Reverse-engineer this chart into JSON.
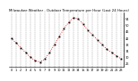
{
  "title": "Milwaukee Weather - Outdoor Temperature per Hour (Last 24 Hours)",
  "hours": [
    0,
    1,
    2,
    3,
    4,
    5,
    6,
    7,
    8,
    9,
    10,
    11,
    12,
    13,
    14,
    15,
    16,
    17,
    18,
    19,
    20,
    21,
    22,
    23
  ],
  "temps": [
    42,
    39,
    36,
    33,
    30,
    28,
    27,
    29,
    33,
    38,
    43,
    48,
    52,
    55,
    54,
    51,
    47,
    44,
    41,
    38,
    35,
    33,
    31,
    29
  ],
  "line_color": "#cc0000",
  "marker_color": "#000000",
  "grid_color": "#777777",
  "bg_color": "#ffffff",
  "ylim": [
    24,
    58
  ],
  "ytick_vals": [
    26,
    30,
    34,
    38,
    42,
    46,
    50,
    54
  ],
  "ytick_labels": [
    "26",
    "30",
    "34",
    "38",
    "42",
    "46",
    "50",
    "54"
  ],
  "title_fontsize": 2.8,
  "tick_fontsize": 2.5
}
